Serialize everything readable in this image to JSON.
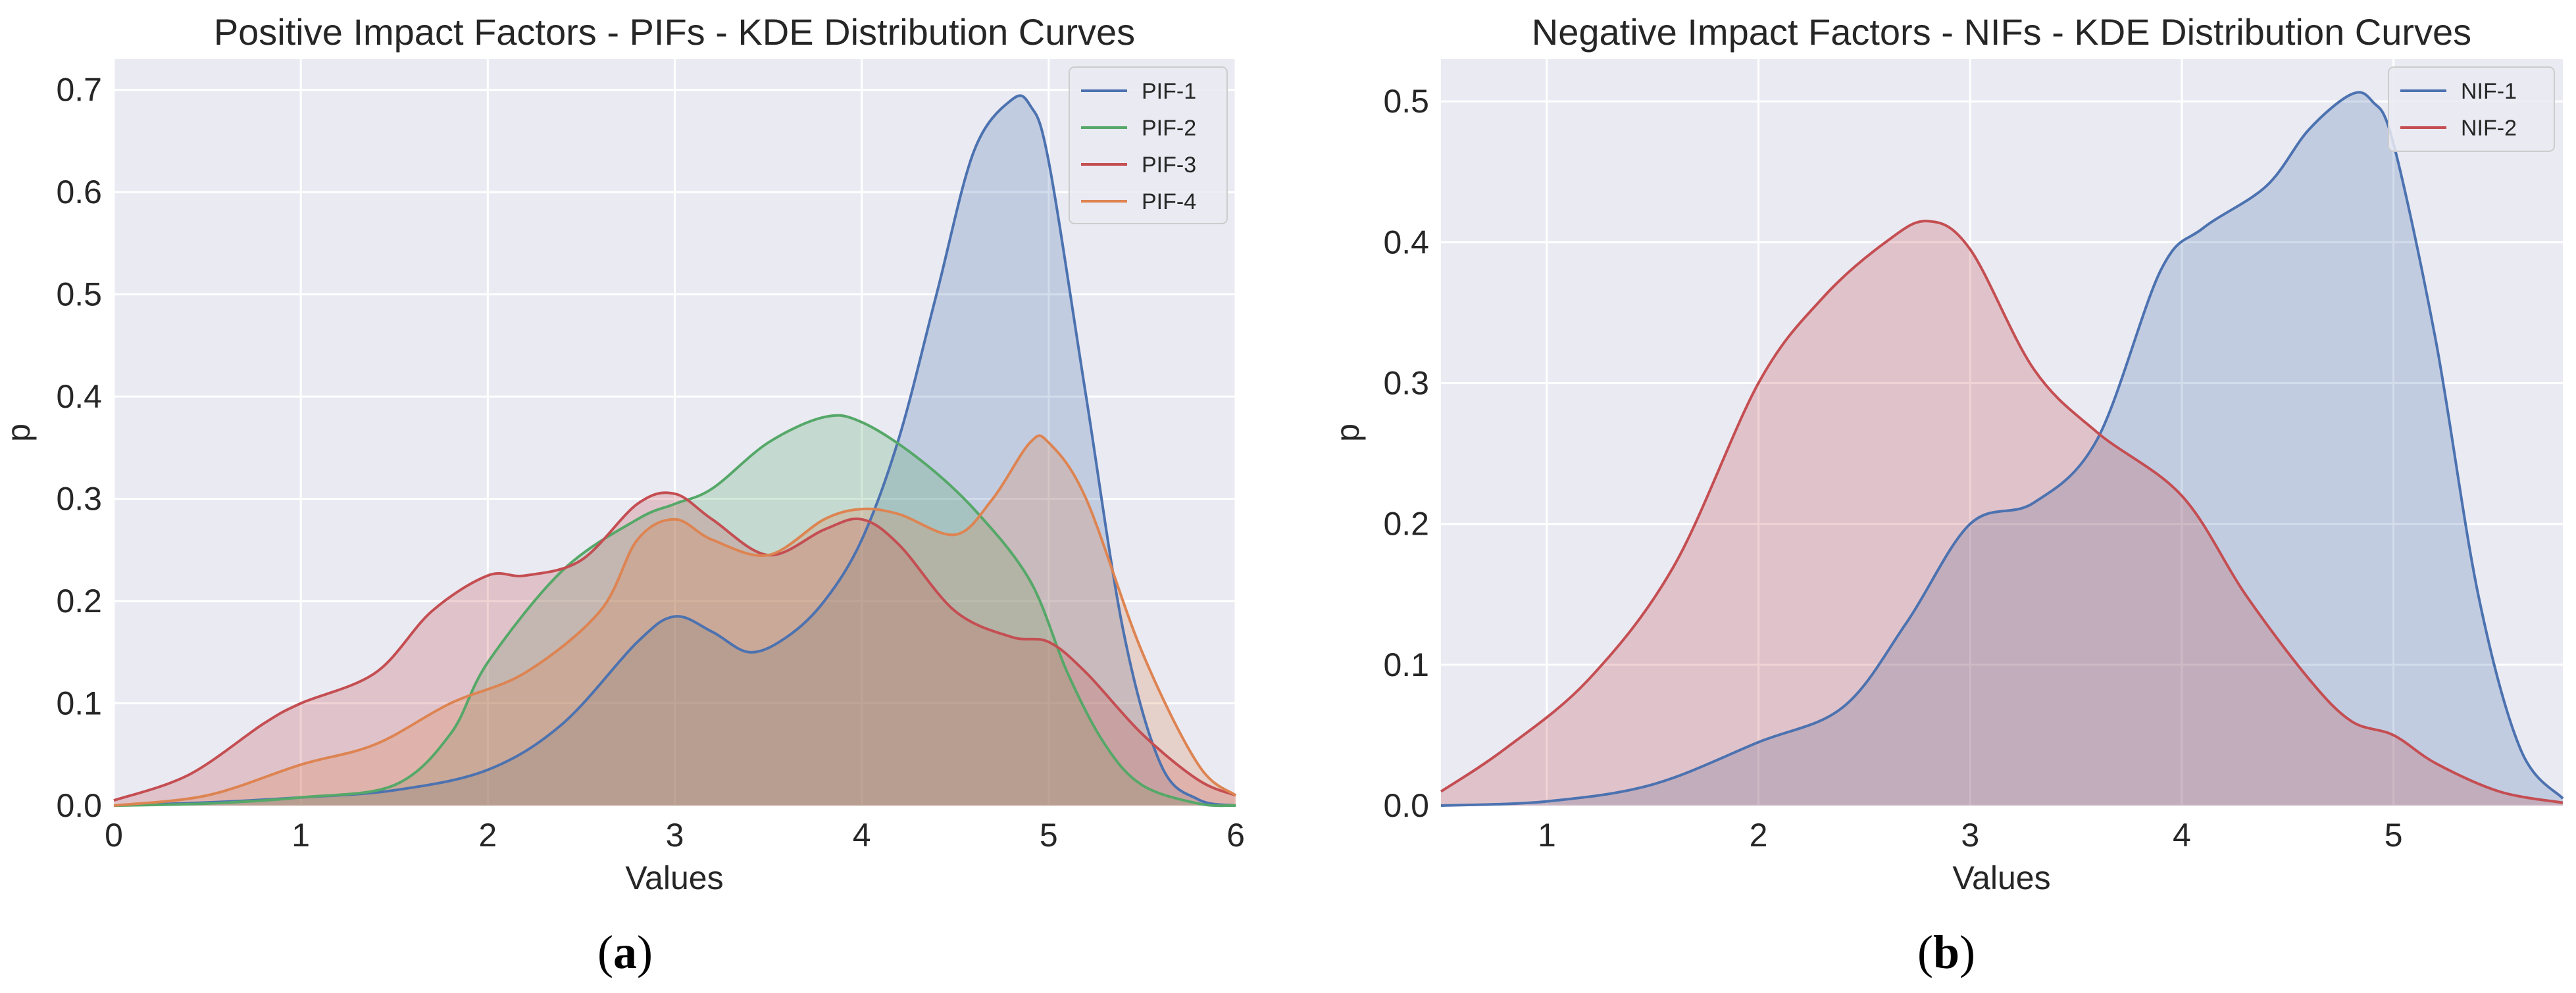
{
  "chart_data": [
    {
      "type": "area",
      "title": "Positive Impact Factors - PIFs - KDE Distribution Curves",
      "xlabel": "Values",
      "ylabel": "p",
      "xlim": [
        0,
        6
      ],
      "ylim": [
        0,
        0.73
      ],
      "xticks": [
        "0",
        "1",
        "2",
        "3",
        "4",
        "5",
        "6"
      ],
      "yticks": [
        "0.0",
        "0.1",
        "0.2",
        "0.3",
        "0.4",
        "0.5",
        "0.6",
        "0.7"
      ],
      "grid": true,
      "legend_position": "top-right",
      "panel_label": {
        "open": "(",
        "letter": "a",
        "close": ")"
      },
      "series": [
        {
          "name": "PIF-1",
          "color": "#4c72b0",
          "x": [
            0,
            0.5,
            1,
            1.5,
            2,
            2.4,
            2.8,
            3.0,
            3.2,
            3.4,
            3.6,
            3.8,
            4.0,
            4.2,
            4.4,
            4.6,
            4.8,
            4.9,
            5.0,
            5.2,
            5.4,
            5.6,
            5.8,
            6.0
          ],
          "y": [
            0,
            0.003,
            0.008,
            0.015,
            0.035,
            0.08,
            0.16,
            0.185,
            0.17,
            0.15,
            0.165,
            0.2,
            0.26,
            0.36,
            0.5,
            0.64,
            0.69,
            0.685,
            0.63,
            0.4,
            0.17,
            0.04,
            0.006,
            0
          ]
        },
        {
          "name": "PIF-2",
          "color": "#55a868",
          "x": [
            0,
            0.5,
            1,
            1.5,
            1.8,
            2.0,
            2.4,
            2.8,
            3.0,
            3.2,
            3.5,
            3.8,
            4.0,
            4.3,
            4.6,
            4.9,
            5.1,
            5.3,
            5.5,
            5.8,
            6.0
          ],
          "y": [
            0,
            0.002,
            0.008,
            0.02,
            0.07,
            0.14,
            0.23,
            0.28,
            0.295,
            0.31,
            0.355,
            0.38,
            0.375,
            0.34,
            0.29,
            0.22,
            0.13,
            0.06,
            0.02,
            0.002,
            0
          ]
        },
        {
          "name": "PIF-3",
          "color": "#c44e52",
          "x": [
            0,
            0.4,
            0.8,
            1.0,
            1.4,
            1.7,
            2.0,
            2.2,
            2.5,
            2.8,
            3.0,
            3.2,
            3.5,
            3.8,
            4.0,
            4.2,
            4.5,
            4.8,
            5.0,
            5.2,
            5.5,
            5.8,
            6.0
          ],
          "y": [
            0.005,
            0.03,
            0.08,
            0.1,
            0.13,
            0.19,
            0.225,
            0.225,
            0.24,
            0.295,
            0.305,
            0.28,
            0.245,
            0.27,
            0.28,
            0.255,
            0.19,
            0.165,
            0.16,
            0.13,
            0.07,
            0.025,
            0.01
          ]
        },
        {
          "name": "PIF-4",
          "color": "#dd8452",
          "x": [
            0,
            0.5,
            1,
            1.4,
            1.8,
            2.2,
            2.6,
            2.8,
            3.0,
            3.2,
            3.5,
            3.8,
            4.0,
            4.2,
            4.5,
            4.7,
            4.9,
            5.0,
            5.2,
            5.5,
            5.8,
            6.0
          ],
          "y": [
            0,
            0.01,
            0.04,
            0.06,
            0.1,
            0.13,
            0.19,
            0.26,
            0.28,
            0.26,
            0.245,
            0.28,
            0.29,
            0.285,
            0.265,
            0.3,
            0.355,
            0.355,
            0.3,
            0.15,
            0.04,
            0.01
          ]
        }
      ]
    },
    {
      "type": "area",
      "title": "Negative Impact Factors - NIFs - KDE Distribution Curves",
      "xlabel": "Values",
      "ylabel": "p",
      "xlim": [
        0.5,
        5.8
      ],
      "ylim": [
        0,
        0.53
      ],
      "xticks": [
        "1",
        "2",
        "3",
        "4",
        "5"
      ],
      "yticks": [
        "0.0",
        "0.1",
        "0.2",
        "0.3",
        "0.4",
        "0.5"
      ],
      "grid": true,
      "legend_position": "top-right",
      "panel_label": {
        "open": "(",
        "letter": "b",
        "close": ")"
      },
      "series": [
        {
          "name": "NIF-1",
          "color": "#4c72b0",
          "x": [
            0.5,
            1.0,
            1.5,
            2.0,
            2.4,
            2.7,
            3.0,
            3.3,
            3.6,
            3.9,
            4.1,
            4.4,
            4.6,
            4.8,
            4.9,
            5.0,
            5.2,
            5.4,
            5.6,
            5.8
          ],
          "y": [
            0,
            0.003,
            0.015,
            0.045,
            0.07,
            0.13,
            0.2,
            0.215,
            0.26,
            0.38,
            0.41,
            0.44,
            0.48,
            0.505,
            0.5,
            0.47,
            0.33,
            0.15,
            0.04,
            0.005
          ]
        },
        {
          "name": "NIF-2",
          "color": "#c44e52",
          "x": [
            0.5,
            0.8,
            1.2,
            1.6,
            2.0,
            2.3,
            2.6,
            2.8,
            3.0,
            3.3,
            3.6,
            4.0,
            4.3,
            4.6,
            4.8,
            5.0,
            5.2,
            5.5,
            5.8
          ],
          "y": [
            0.01,
            0.04,
            0.09,
            0.17,
            0.3,
            0.36,
            0.4,
            0.415,
            0.395,
            0.31,
            0.265,
            0.22,
            0.15,
            0.09,
            0.06,
            0.05,
            0.03,
            0.01,
            0.002
          ]
        }
      ]
    }
  ]
}
